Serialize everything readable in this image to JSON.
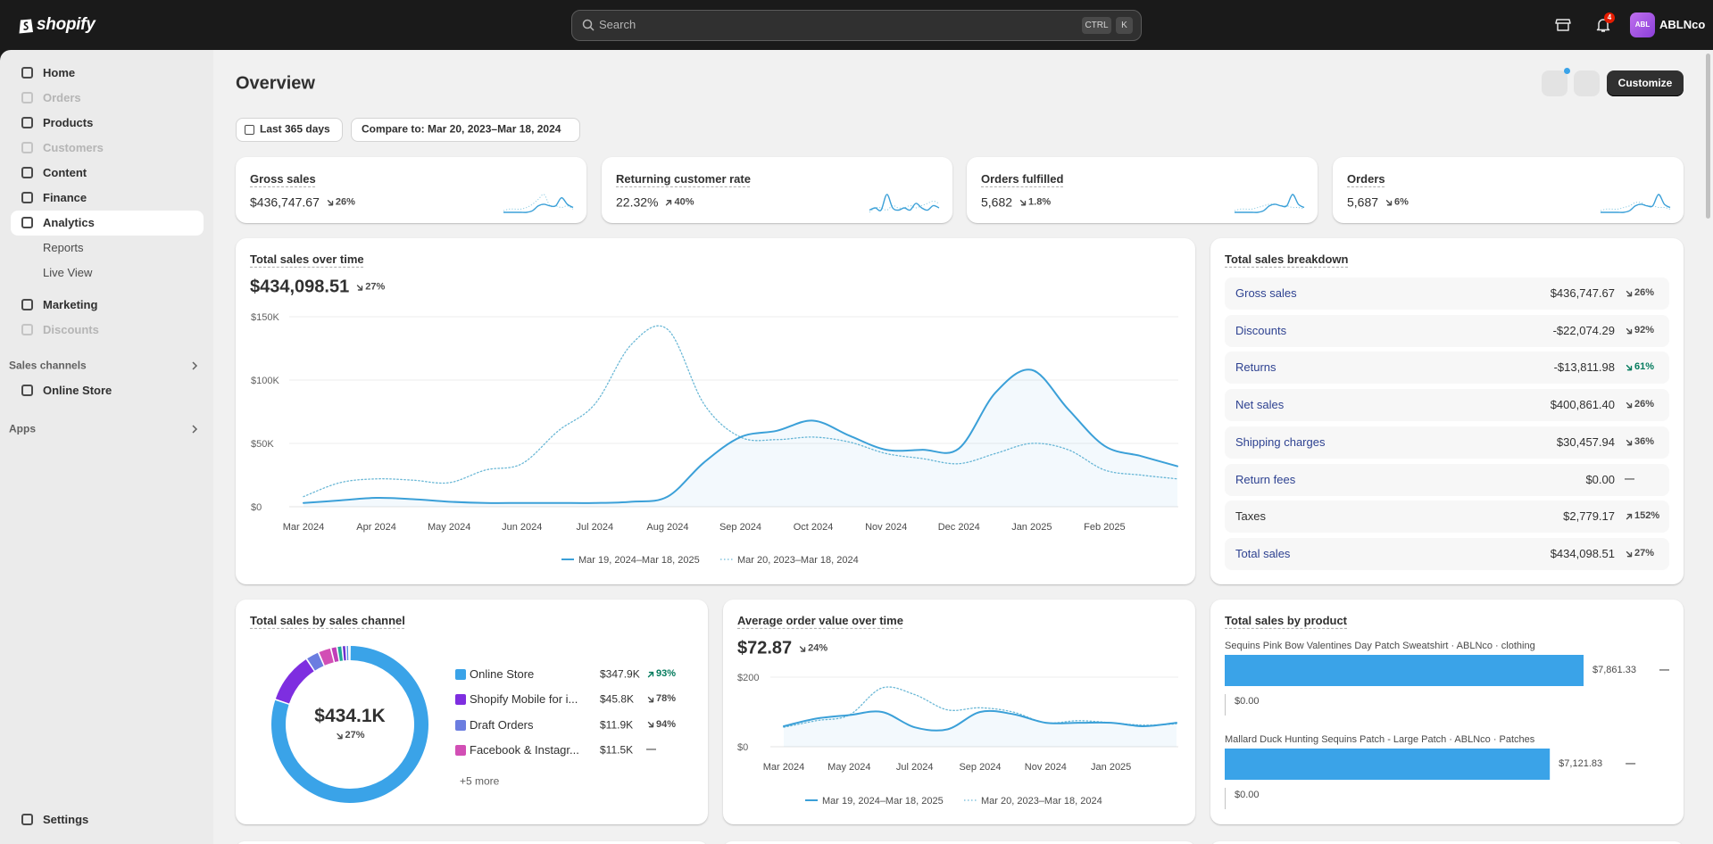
{
  "topbar": {
    "logo": "shopify",
    "search_placeholder": "Search",
    "shortcut_keys": [
      "CTRL",
      "K"
    ],
    "notification_count": 4,
    "avatar": "ABL",
    "store_name": "ABLNco"
  },
  "nav": {
    "items": [
      {
        "label": "Home",
        "disabled": false
      },
      {
        "label": "Orders",
        "disabled": true
      },
      {
        "label": "Products",
        "disabled": false
      },
      {
        "label": "Customers",
        "disabled": true
      },
      {
        "label": "Content",
        "disabled": false
      },
      {
        "label": "Finance",
        "disabled": false
      },
      {
        "label": "Analytics",
        "disabled": false,
        "selected": true,
        "children": [
          "Reports",
          "Live View"
        ]
      },
      {
        "label": "Marketing",
        "disabled": false
      },
      {
        "label": "Discounts",
        "disabled": true
      }
    ],
    "sales_channels": {
      "title": "Sales channels",
      "items": [
        "Online Store"
      ]
    },
    "apps": "Apps",
    "settings": "Settings"
  },
  "page": {
    "title": "Overview",
    "customize": "Customize",
    "date_range": "Last 365 days",
    "comparison": "Compare to: Mar 20, 2023–Mar 18, 2024"
  },
  "kpis": [
    {
      "label": "Gross sales",
      "value": "$436,747.67",
      "change": "26%",
      "direction": "down",
      "trend": [
        1,
        1,
        1,
        1,
        1,
        2,
        5,
        6,
        5,
        5,
        10,
        6,
        4
      ],
      "previous_trend": [
        2,
        3,
        3,
        3,
        4,
        6,
        9,
        12,
        5,
        5,
        4,
        5,
        3
      ]
    },
    {
      "label": "Returning customer rate",
      "value": "22.32%",
      "change": "40%",
      "direction": "up",
      "trend": [
        5,
        6,
        5,
        12,
        6,
        5,
        6,
        5,
        8,
        6,
        5,
        7,
        6
      ],
      "previous_trend": [
        4,
        6,
        6,
        5,
        7,
        6,
        6,
        7,
        6,
        7,
        8,
        9,
        8
      ]
    },
    {
      "label": "Orders fulfilled",
      "value": "5,682",
      "change": "1.8%",
      "direction": "down",
      "trend": [
        1,
        1,
        1,
        1,
        1,
        2,
        5,
        6,
        5,
        5,
        12,
        6,
        4
      ],
      "previous_trend": [
        2,
        3,
        3,
        3,
        4,
        5,
        6,
        6,
        5,
        5,
        4,
        4,
        3
      ]
    },
    {
      "label": "Orders",
      "value": "5,687",
      "change": "6%",
      "direction": "down",
      "trend": [
        1,
        1,
        1,
        1,
        1,
        2,
        5,
        6,
        5,
        5,
        12,
        6,
        4
      ],
      "previous_trend": [
        2,
        3,
        3,
        3,
        4,
        5,
        7,
        7,
        5,
        5,
        4,
        4,
        3
      ]
    }
  ],
  "total_sales": {
    "type": "line",
    "title": "Total sales over time",
    "value": "$434,098.51",
    "change": "27%",
    "direction": "down",
    "categories": [
      "Mar 2024",
      null,
      "Apr 2024",
      null,
      "May 2024",
      null,
      "Jun 2024",
      null,
      "Jul 2024",
      null,
      "Aug 2024",
      null,
      "Sep 2024",
      null,
      "Oct 2024",
      null,
      "Nov 2024",
      null,
      "Dec 2024",
      null,
      "Jan 2025",
      null,
      "Feb 2025",
      null,
      null
    ],
    "ylim": [
      0,
      150000
    ],
    "yticks": [
      {
        "value": 0,
        "label": "$0"
      },
      {
        "value": 50000,
        "label": "$50K"
      },
      {
        "value": 100000,
        "label": "$100K"
      },
      {
        "value": 150000,
        "label": "$150K"
      }
    ],
    "grid": true,
    "series": [
      {
        "name": "Mar 19, 2024–Mar 18, 2025",
        "color": "#3ba0d8",
        "area": true,
        "values": [
          3000,
          5000,
          7000,
          6000,
          4000,
          3000,
          3000,
          3000,
          3000,
          4000,
          8000,
          35000,
          55000,
          60000,
          68000,
          56000,
          45000,
          45000,
          46000,
          90000,
          108000,
          77000,
          48000,
          40000,
          32000
        ]
      },
      {
        "name": "Mar 20, 2023–Mar 18, 2024",
        "color": "#6bb8d6",
        "dash": "dotted",
        "values": [
          8000,
          19000,
          22000,
          21000,
          19000,
          29000,
          34000,
          60000,
          81000,
          128000,
          140000,
          81000,
          55000,
          53000,
          55000,
          51000,
          42000,
          38000,
          34000,
          42000,
          50000,
          45000,
          29000,
          25000,
          22000
        ]
      }
    ]
  },
  "breakdown": {
    "title": "Total sales breakdown",
    "rows": [
      {
        "label": "Gross sales",
        "value": "$436,747.67",
        "change": "26%",
        "direction": "down",
        "link": true
      },
      {
        "label": "Discounts",
        "value": "-$22,074.29",
        "change": "92%",
        "direction": "down",
        "link": true
      },
      {
        "label": "Returns",
        "value": "-$13,811.98",
        "change": "61%",
        "direction": "down",
        "link": true,
        "change_color": "#047b5d"
      },
      {
        "label": "Net sales",
        "value": "$400,861.40",
        "change": "26%",
        "direction": "down",
        "link": true
      },
      {
        "label": "Shipping charges",
        "value": "$30,457.94",
        "change": "36%",
        "direction": "down",
        "link": true
      },
      {
        "label": "Return fees",
        "value": "$0.00",
        "change": "—",
        "link": true
      },
      {
        "label": "Taxes",
        "value": "$2,779.17",
        "change": "152%",
        "direction": "up",
        "link": false
      },
      {
        "label": "Total sales",
        "value": "$434,098.51",
        "change": "27%",
        "direction": "down",
        "link": true
      }
    ]
  },
  "sales_by_channel": {
    "type": "donut",
    "title": "Total sales by sales channel",
    "total": "$434.1K",
    "change": "27%",
    "direction": "down",
    "channels": [
      {
        "name": "Online Store",
        "value": 347.9,
        "value_label": "$347.9K",
        "change": "93%",
        "direction": "up",
        "color": "#3aa3e8",
        "change_color": "#047b5d"
      },
      {
        "name": "Shopify Mobile for i...",
        "value": 45.8,
        "value_label": "$45.8K",
        "change": "78%",
        "direction": "down",
        "color": "#7e2ee0"
      },
      {
        "name": "Draft Orders",
        "value": 11.9,
        "value_label": "$11.9K",
        "change": "94%",
        "direction": "down",
        "color": "#6b7de0"
      },
      {
        "name": "Facebook & Instagr...",
        "value": 11.5,
        "value_label": "$11.5K",
        "change": "—",
        "color": "#d24fb5"
      }
    ],
    "more": {
      "label": "+5 more",
      "values": [
        5.5,
        4.5,
        3.5,
        2.5,
        1.0
      ],
      "colors": [
        "#c03fb8",
        "#21a89a",
        "#6b2fd0",
        "#4c8be0",
        "#9e9e9e"
      ]
    }
  },
  "aov": {
    "type": "line",
    "title": "Average order value over time",
    "value": "$72.87",
    "change": "24%",
    "direction": "down",
    "categories": [
      "Mar 2024",
      null,
      "May 2024",
      null,
      "Jul 2024",
      null,
      "Sep 2024",
      null,
      "Nov 2024",
      null,
      "Jan 2025",
      null,
      null
    ],
    "ylim": [
      0,
      200
    ],
    "yticks": [
      {
        "value": 0,
        "label": "$0"
      },
      {
        "value": 200,
        "label": "$200"
      }
    ],
    "grid": true,
    "series": [
      {
        "name": "Mar 19, 2024–Mar 18, 2025",
        "color": "#3ba0d8",
        "area": true,
        "values": [
          59,
          81,
          91,
          100,
          56,
          50,
          100,
          94,
          69,
          69,
          69,
          59,
          69
        ]
      },
      {
        "name": "Mar 20, 2023–Mar 18, 2024",
        "color": "#6bb8d6",
        "dash": "dotted",
        "values": [
          56,
          75,
          91,
          169,
          150,
          106,
          112,
          100,
          69,
          75,
          69,
          62,
          66
        ]
      }
    ]
  },
  "products": {
    "title": "Total sales by product",
    "color": "#3aa3e8",
    "items": [
      {
        "name": "Sequins Pink Bow Valentines Day Patch Sweatshirt · ABLNco · clothing",
        "value": 7861.33,
        "value_label": "$7,861.33",
        "comparison": 0,
        "comparison_label": "$0.00",
        "change": "—"
      },
      {
        "name": "Mallard Duck Hunting Sequins Patch - Large Patch · ABLNco · Patches",
        "value": 7121.83,
        "value_label": "$7,121.83",
        "comparison": 0,
        "comparison_label": "$0.00",
        "change": "—"
      }
    ]
  }
}
